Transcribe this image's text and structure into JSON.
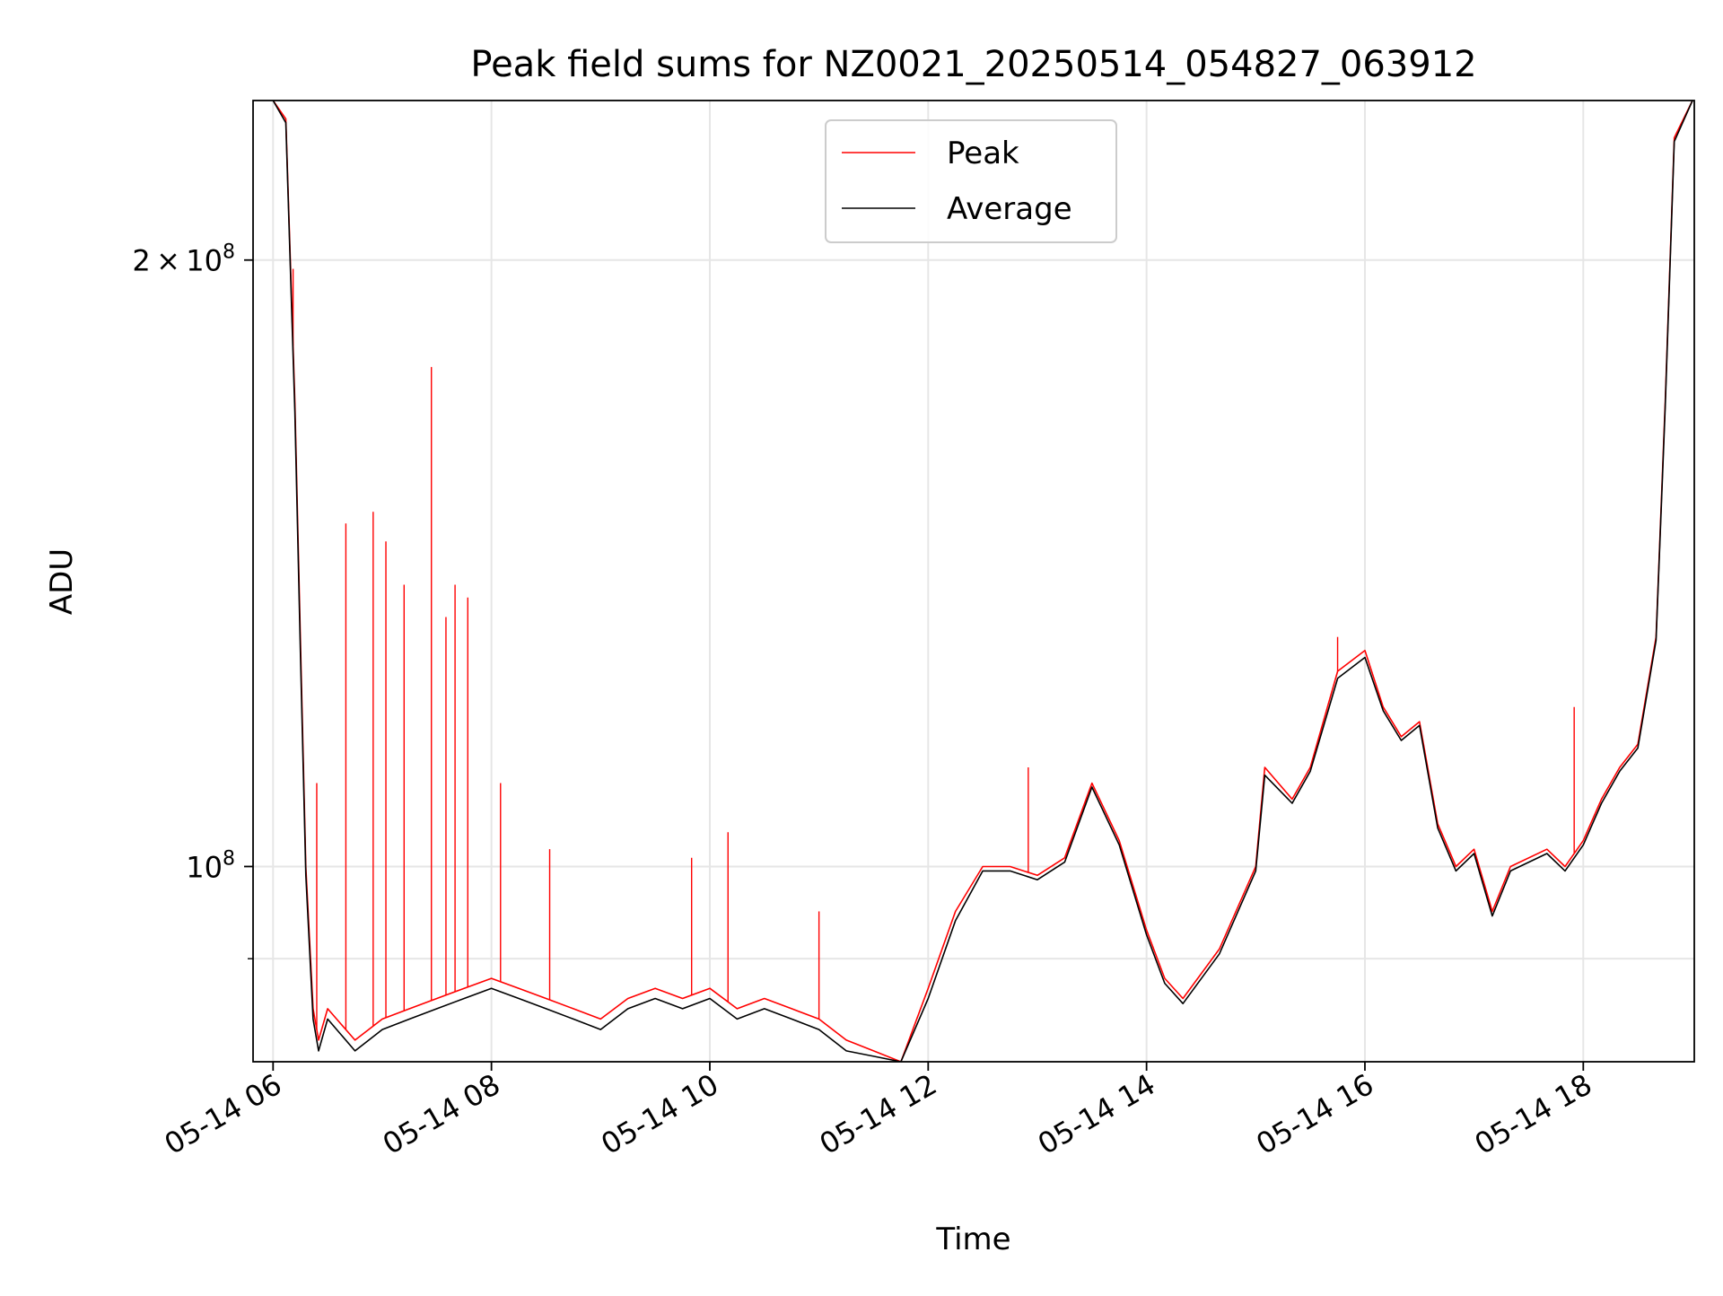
{
  "chart_data": {
    "type": "line",
    "title": "Peak field sums for NZ0021_20250514_054827_063912",
    "xlabel": "Time",
    "ylabel": "ADU",
    "y_scale": "log",
    "grid": true,
    "legend_position": "top-center",
    "xlim": [
      "2025-05-14 05:49",
      "2025-05-14 19:01"
    ],
    "ylim": [
      80000000,
      240000000
    ],
    "x_ticks": [
      {
        "value": "2025-05-14 06:00",
        "label": "05-14 06"
      },
      {
        "value": "2025-05-14 08:00",
        "label": "05-14 08"
      },
      {
        "value": "2025-05-14 10:00",
        "label": "05-14 10"
      },
      {
        "value": "2025-05-14 12:00",
        "label": "05-14 12"
      },
      {
        "value": "2025-05-14 14:00",
        "label": "05-14 14"
      },
      {
        "value": "2025-05-14 16:00",
        "label": "05-14 16"
      },
      {
        "value": "2025-05-14 18:00",
        "label": "05-14 18"
      }
    ],
    "y_ticks": [
      {
        "value": 200000000,
        "base": "2 × 10",
        "exp": "8"
      },
      {
        "value": 100000000,
        "base": "10",
        "exp": "8"
      }
    ],
    "y_minor_ticks": [
      90000000
    ],
    "series": [
      {
        "name": "Peak",
        "color": "#ff0000",
        "x": [
          "2025-05-14 06:00",
          "2025-05-14 06:07",
          "2025-05-14 06:12",
          "2025-05-14 06:15",
          "2025-05-14 06:18",
          "2025-05-14 06:22",
          "2025-05-14 06:25",
          "2025-05-14 06:30",
          "2025-05-14 06:45",
          "2025-05-14 07:00",
          "2025-05-14 07:15",
          "2025-05-14 07:30",
          "2025-05-14 07:45",
          "2025-05-14 08:00",
          "2025-05-14 08:15",
          "2025-05-14 08:30",
          "2025-05-14 08:45",
          "2025-05-14 09:00",
          "2025-05-14 09:15",
          "2025-05-14 09:30",
          "2025-05-14 09:45",
          "2025-05-14 10:00",
          "2025-05-14 10:15",
          "2025-05-14 10:30",
          "2025-05-14 10:45",
          "2025-05-14 11:00",
          "2025-05-14 11:15",
          "2025-05-14 11:30",
          "2025-05-14 11:45",
          "2025-05-14 12:00",
          "2025-05-14 12:15",
          "2025-05-14 12:30",
          "2025-05-14 12:45",
          "2025-05-14 13:00",
          "2025-05-14 13:15",
          "2025-05-14 13:30",
          "2025-05-14 13:45",
          "2025-05-14 14:00",
          "2025-05-14 14:10",
          "2025-05-14 14:20",
          "2025-05-14 14:40",
          "2025-05-14 15:00",
          "2025-05-14 15:05",
          "2025-05-14 15:20",
          "2025-05-14 15:30",
          "2025-05-14 15:45",
          "2025-05-14 16:00",
          "2025-05-14 16:10",
          "2025-05-14 16:20",
          "2025-05-14 16:30",
          "2025-05-14 16:40",
          "2025-05-14 16:50",
          "2025-05-14 17:00",
          "2025-05-14 17:10",
          "2025-05-14 17:20",
          "2025-05-14 17:40",
          "2025-05-14 17:50",
          "2025-05-14 18:00",
          "2025-05-14 18:10",
          "2025-05-14 18:20",
          "2025-05-14 18:30",
          "2025-05-14 18:40",
          "2025-05-14 18:45",
          "2025-05-14 18:50",
          "2025-05-14 19:00"
        ],
        "values": [
          240000000,
          235000000,
          170000000,
          130000000,
          100000000,
          85000000,
          82000000,
          85000000,
          82000000,
          84000000,
          85000000,
          86000000,
          87000000,
          88000000,
          87000000,
          86000000,
          85000000,
          84000000,
          86000000,
          87000000,
          86000000,
          87000000,
          85000000,
          86000000,
          85000000,
          84000000,
          82000000,
          81000000,
          80000000,
          87000000,
          95000000,
          100000000,
          100000000,
          99000000,
          101000000,
          110000000,
          103000000,
          93000000,
          88000000,
          86000000,
          91000000,
          100000000,
          112000000,
          108000000,
          112000000,
          125000000,
          128000000,
          120000000,
          116000000,
          118000000,
          105000000,
          100000000,
          102000000,
          95000000,
          100000000,
          102000000,
          100000000,
          103000000,
          108000000,
          112000000,
          115000000,
          130000000,
          170000000,
          230000000,
          240000000
        ],
        "spikes": [
          {
            "x": "2025-05-14 06:11",
            "value": 198000000
          },
          {
            "x": "2025-05-14 06:24",
            "value": 110000000
          },
          {
            "x": "2025-05-14 06:40",
            "value": 148000000
          },
          {
            "x": "2025-05-14 06:55",
            "value": 150000000
          },
          {
            "x": "2025-05-14 07:02",
            "value": 145000000
          },
          {
            "x": "2025-05-14 07:12",
            "value": 138000000
          },
          {
            "x": "2025-05-14 07:27",
            "value": 177000000
          },
          {
            "x": "2025-05-14 07:35",
            "value": 133000000
          },
          {
            "x": "2025-05-14 07:40",
            "value": 138000000
          },
          {
            "x": "2025-05-14 07:47",
            "value": 136000000
          },
          {
            "x": "2025-05-14 08:05",
            "value": 110000000
          },
          {
            "x": "2025-05-14 08:32",
            "value": 102000000
          },
          {
            "x": "2025-05-14 09:50",
            "value": 101000000
          },
          {
            "x": "2025-05-14 10:10",
            "value": 104000000
          },
          {
            "x": "2025-05-14 11:00",
            "value": 95000000
          },
          {
            "x": "2025-05-14 12:55",
            "value": 112000000
          },
          {
            "x": "2025-05-14 15:45",
            "value": 130000000
          },
          {
            "x": "2025-05-14 17:55",
            "value": 120000000
          }
        ]
      },
      {
        "name": "Average",
        "color": "#000000",
        "x": [
          "2025-05-14 06:00",
          "2025-05-14 06:07",
          "2025-05-14 06:12",
          "2025-05-14 06:15",
          "2025-05-14 06:18",
          "2025-05-14 06:22",
          "2025-05-14 06:25",
          "2025-05-14 06:30",
          "2025-05-14 06:45",
          "2025-05-14 07:00",
          "2025-05-14 07:15",
          "2025-05-14 07:30",
          "2025-05-14 07:45",
          "2025-05-14 08:00",
          "2025-05-14 08:15",
          "2025-05-14 08:30",
          "2025-05-14 08:45",
          "2025-05-14 09:00",
          "2025-05-14 09:15",
          "2025-05-14 09:30",
          "2025-05-14 09:45",
          "2025-05-14 10:00",
          "2025-05-14 10:15",
          "2025-05-14 10:30",
          "2025-05-14 10:45",
          "2025-05-14 11:00",
          "2025-05-14 11:15",
          "2025-05-14 11:30",
          "2025-05-14 11:45",
          "2025-05-14 12:00",
          "2025-05-14 12:15",
          "2025-05-14 12:30",
          "2025-05-14 12:45",
          "2025-05-14 13:00",
          "2025-05-14 13:15",
          "2025-05-14 13:30",
          "2025-05-14 13:45",
          "2025-05-14 14:00",
          "2025-05-14 14:10",
          "2025-05-14 14:20",
          "2025-05-14 14:40",
          "2025-05-14 15:00",
          "2025-05-14 15:05",
          "2025-05-14 15:20",
          "2025-05-14 15:30",
          "2025-05-14 15:45",
          "2025-05-14 16:00",
          "2025-05-14 16:10",
          "2025-05-14 16:20",
          "2025-05-14 16:30",
          "2025-05-14 16:40",
          "2025-05-14 16:50",
          "2025-05-14 17:00",
          "2025-05-14 17:10",
          "2025-05-14 17:20",
          "2025-05-14 17:40",
          "2025-05-14 17:50",
          "2025-05-14 18:00",
          "2025-05-14 18:10",
          "2025-05-14 18:20",
          "2025-05-14 18:30",
          "2025-05-14 18:40",
          "2025-05-14 18:45",
          "2025-05-14 18:50",
          "2025-05-14 19:00"
        ],
        "values": [
          240000000,
          234000000,
          168000000,
          128000000,
          99000000,
          84000000,
          81000000,
          84000000,
          81000000,
          83000000,
          84000000,
          85000000,
          86000000,
          87000000,
          86000000,
          85000000,
          84000000,
          83000000,
          85000000,
          86000000,
          85000000,
          86000000,
          84000000,
          85000000,
          84000000,
          83000000,
          81000000,
          80500000,
          80000000,
          86000000,
          94000000,
          99500000,
          99500000,
          98500000,
          100500000,
          109500000,
          102500000,
          92500000,
          87500000,
          85500000,
          90500000,
          99500000,
          111000000,
          107500000,
          111500000,
          124000000,
          127000000,
          119500000,
          115500000,
          117500000,
          104500000,
          99500000,
          101500000,
          94500000,
          99500000,
          101500000,
          99500000,
          102500000,
          107500000,
          111500000,
          114500000,
          129500000,
          169000000,
          229000000,
          240000000
        ]
      }
    ]
  }
}
